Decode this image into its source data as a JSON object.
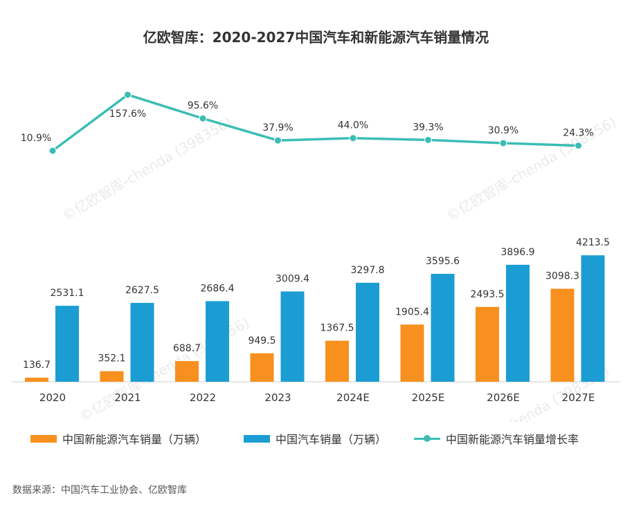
{
  "title": "亿欧智库：2020-2027中国汽车和新能源汽车销量情况",
  "source": "数据来源：中国汽车工业协会、亿欧智库",
  "watermark": "©亿欧智库-chenda (398356)",
  "colors": {
    "nev": "#F7901E",
    "total": "#1B9DD3",
    "growth": "#3BBDB4"
  },
  "chart_data": {
    "type": "bar",
    "categories": [
      "2020",
      "2021",
      "2022",
      "2023",
      "2024E",
      "2025E",
      "2026E",
      "2027E"
    ],
    "series": [
      {
        "name": "中国新能源汽车销量（万辆）",
        "type": "bar",
        "values": [
          136.7,
          352.1,
          688.7,
          949.5,
          1367.5,
          1905.4,
          2493.5,
          3098.3
        ],
        "labels": [
          "136.7",
          "352.1",
          "688.7",
          "949.5",
          "1367.5",
          "1905.4",
          "2493.5",
          "3098.3"
        ]
      },
      {
        "name": "中国汽车销量（万辆）",
        "type": "bar",
        "values": [
          2531.1,
          2627.5,
          2686.4,
          3009.4,
          3297.8,
          3595.6,
          3896.9,
          4213.5
        ],
        "labels": [
          "2531.1",
          "2627.5",
          "2686.4",
          "3009.4",
          "3297.8",
          "3595.6",
          "3896.9",
          "4213.5"
        ]
      },
      {
        "name": "中国新能源汽车销量增长率",
        "type": "line",
        "values": [
          10.9,
          157.6,
          95.6,
          37.9,
          44.0,
          39.3,
          30.9,
          24.3
        ],
        "labels": [
          "10.9%",
          "157.6%",
          "95.6%",
          "37.9%",
          "44.0%",
          "39.3%",
          "30.9%",
          "24.3%"
        ]
      }
    ],
    "legend_position": "bottom",
    "grid": false
  }
}
